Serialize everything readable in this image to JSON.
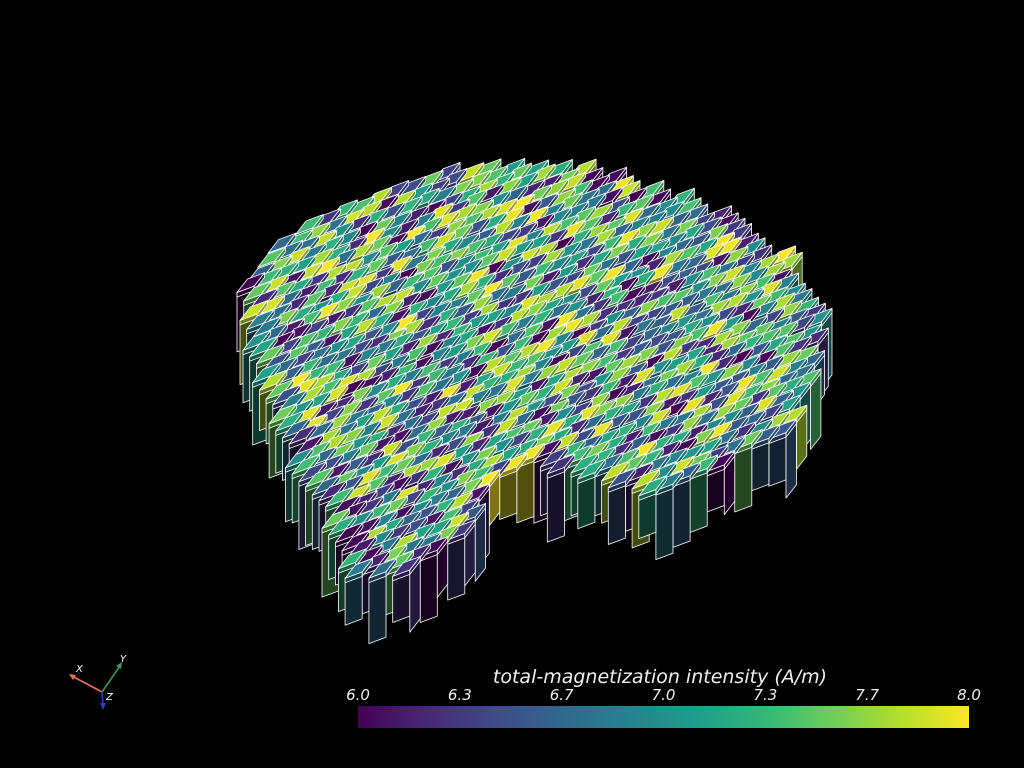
{
  "viewport": {
    "background": "#000000",
    "edge_color": "#ffffff",
    "colormap": "viridis"
  },
  "scalar_bar": {
    "title": "total-magnetization intensity (A/m)",
    "min": 6.0,
    "max": 8.0,
    "tick_labels": [
      "6.0",
      "6.3",
      "6.7",
      "7.0",
      "7.3",
      "7.7",
      "8.0"
    ],
    "stops": [
      "#440154",
      "#482878",
      "#3e4a89",
      "#31688e",
      "#26828e",
      "#1f9e89",
      "#35b779",
      "#6ece58",
      "#b5de2b",
      "#fde725"
    ]
  },
  "orientation_axes": {
    "x": {
      "label": "X",
      "color": "#e8705a"
    },
    "y": {
      "label": "Y",
      "color": "#3a9a5a"
    },
    "z": {
      "label": "Z",
      "color": "#2a3ccc"
    }
  }
}
